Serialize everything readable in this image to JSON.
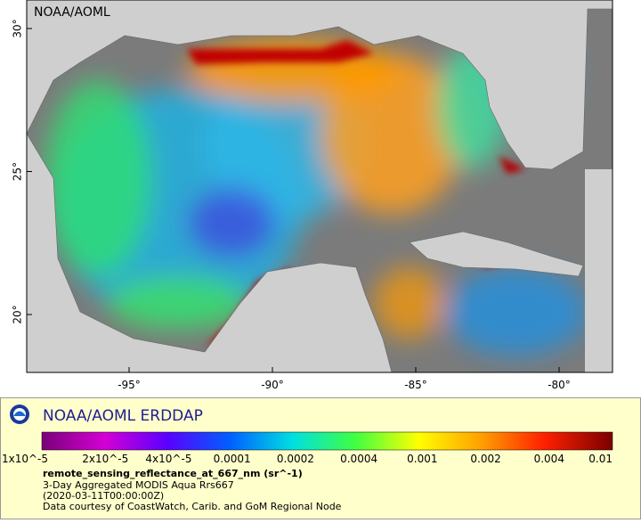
{
  "map": {
    "watermark": "NOAA/AOML",
    "lat_labels": [
      "30°",
      "25°",
      "20°"
    ],
    "lon_labels": [
      "-95°",
      "-90°",
      "-85°",
      "-80°"
    ]
  },
  "legend": {
    "title": "NOAA/AOML ERDDAP",
    "colorbar_labels": [
      "1x10^-5",
      "2x10^-5",
      "4x10^-5",
      "0.0001",
      "0.0002",
      "0.0004",
      "0.001",
      "0.002",
      "0.004",
      "0.01"
    ],
    "variable": "remote_sensing_reflectance_at_667_nm (sr^-1)",
    "lines": [
      "3-Day Aggregated MODIS Aqua Rrs667",
      "(2020-03-11T00:00:00Z)",
      "Data courtesy of CoastWatch, Carib. and GoM Regional Node"
    ]
  }
}
